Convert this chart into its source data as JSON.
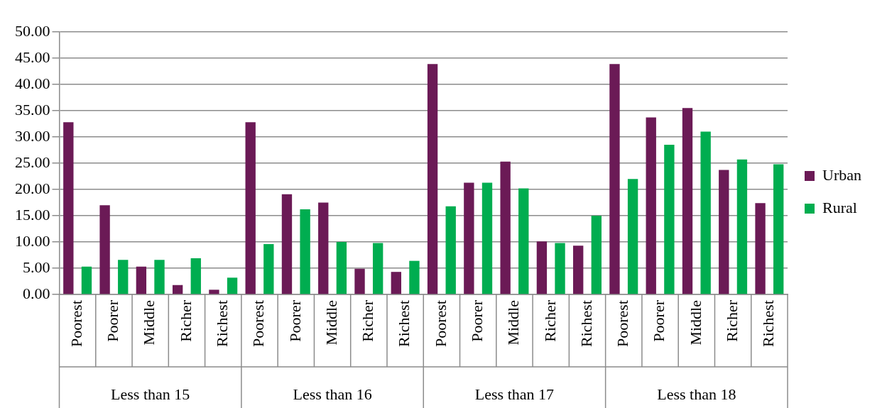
{
  "chart_data": {
    "type": "bar",
    "categories": [
      "Poorest",
      "Poorer",
      "Middle",
      "Richer",
      "Richest",
      "Poorest",
      "Poorer",
      "Middle",
      "Richer",
      "Richest",
      "Poorest",
      "Poorer",
      "Middle",
      "Richer",
      "Richest",
      "Poorest",
      "Poorer",
      "Middle",
      "Richer",
      "Richest"
    ],
    "series": [
      {
        "name": "Urban",
        "color": "#6b1a56",
        "values": [
          32.8,
          17.0,
          5.3,
          1.8,
          0.9,
          32.8,
          19.1,
          17.5,
          4.9,
          4.3,
          43.9,
          21.3,
          25.3,
          10.1,
          9.3,
          43.9,
          33.7,
          35.5,
          23.7,
          17.4
        ]
      },
      {
        "name": "Rural",
        "color": "#00ad50",
        "values": [
          5.3,
          6.6,
          6.6,
          6.9,
          3.2,
          9.6,
          16.2,
          10.0,
          9.8,
          6.4,
          16.8,
          21.3,
          20.2,
          9.8,
          15.0,
          22.0,
          28.5,
          31.0,
          25.7,
          24.8
        ]
      }
    ],
    "annotations": [
      "Less than 15",
      "Less than 16",
      "Less than 17",
      "Less than 18"
    ],
    "ylim": [
      0,
      50
    ],
    "yticks": [
      {
        "value": 0,
        "label": "0.00"
      },
      {
        "value": 5,
        "label": "5.00"
      },
      {
        "value": 10,
        "label": "10.00"
      },
      {
        "value": 15,
        "label": "15.00"
      },
      {
        "value": 20,
        "label": "20.00"
      },
      {
        "value": 25,
        "label": "25.00"
      },
      {
        "value": 30,
        "label": "30.00"
      },
      {
        "value": 35,
        "label": "35.00"
      },
      {
        "value": 40,
        "label": "40.00"
      },
      {
        "value": 45,
        "label": "45.00"
      },
      {
        "value": 50,
        "label": "50.00"
      }
    ],
    "grid": "y",
    "legend": "right"
  }
}
